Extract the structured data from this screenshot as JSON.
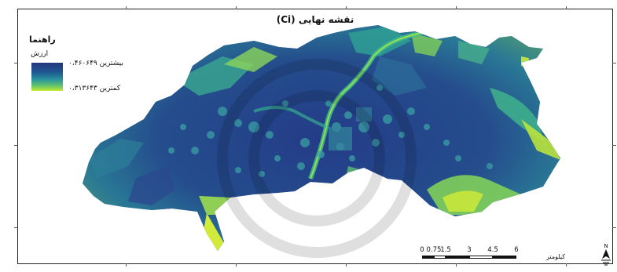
{
  "map": {
    "title": "نقشه نهایی (Ci)",
    "legend": {
      "heading": "راهنما",
      "field": "ارزش",
      "max_label": "بیشترین ۰،۴۶۰۶۴۹",
      "min_label": "کمترین ۰،۳۱۳۶۴۳",
      "max_value": 0.460649,
      "min_value": 0.313643,
      "ramp_colors": [
        "#24357e",
        "#1f5a92",
        "#29959c",
        "#66c46a",
        "#c5ea33"
      ]
    },
    "scale_bar": {
      "ticks": [
        "0",
        "0.75",
        "1.5",
        "3",
        "4.5",
        "6"
      ],
      "unit": "کیلومتر"
    },
    "north_arrow_icon": "north-arrow-icon"
  }
}
